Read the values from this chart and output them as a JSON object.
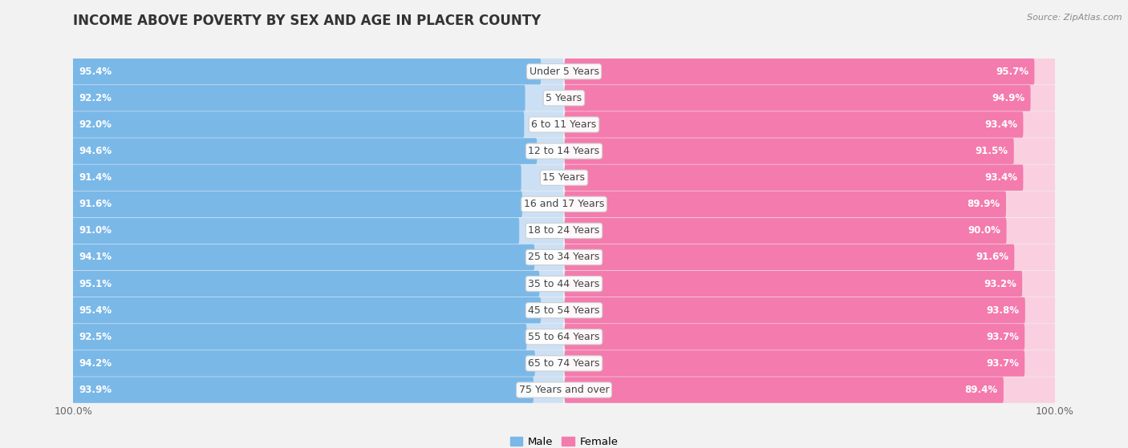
{
  "title": "INCOME ABOVE POVERTY BY SEX AND AGE IN PLACER COUNTY",
  "source": "Source: ZipAtlas.com",
  "categories": [
    "Under 5 Years",
    "5 Years",
    "6 to 11 Years",
    "12 to 14 Years",
    "15 Years",
    "16 and 17 Years",
    "18 to 24 Years",
    "25 to 34 Years",
    "35 to 44 Years",
    "45 to 54 Years",
    "55 to 64 Years",
    "65 to 74 Years",
    "75 Years and over"
  ],
  "male_values": [
    95.4,
    92.2,
    92.0,
    94.6,
    91.4,
    91.6,
    91.0,
    94.1,
    95.1,
    95.4,
    92.5,
    94.2,
    93.9
  ],
  "female_values": [
    95.7,
    94.9,
    93.4,
    91.5,
    93.4,
    89.9,
    90.0,
    91.6,
    93.2,
    93.8,
    93.7,
    93.7,
    89.4
  ],
  "male_color": "#7ab8e8",
  "female_color": "#f47bad",
  "male_bg_color": "#cce0f5",
  "female_bg_color": "#fad0e0",
  "male_label": "Male",
  "female_label": "Female",
  "row_colors": [
    "#f7f7f7",
    "#efefef"
  ],
  "title_fontsize": 12,
  "value_fontsize": 8.5,
  "cat_fontsize": 9
}
